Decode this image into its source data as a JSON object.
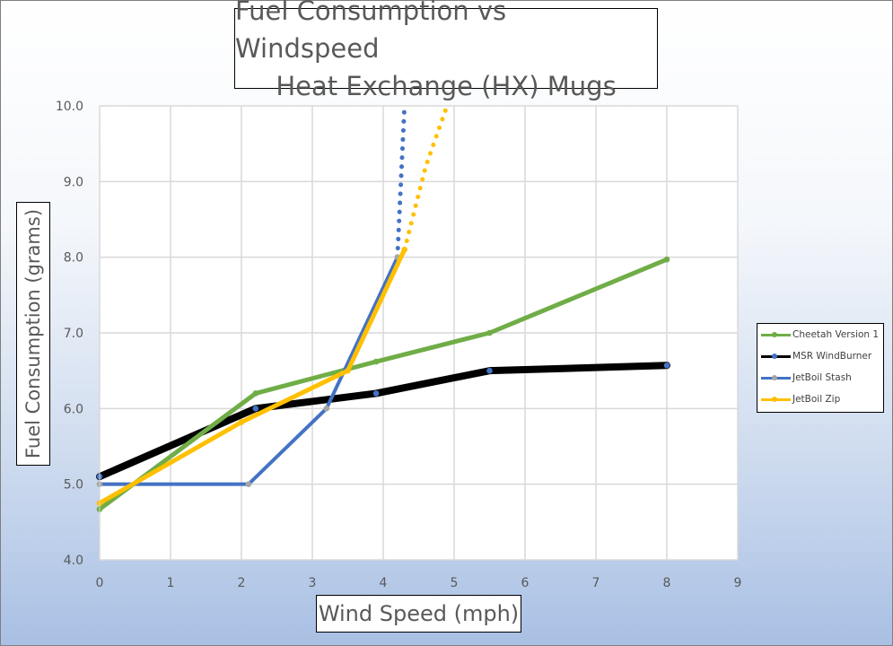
{
  "chart_data": {
    "type": "line",
    "title_line1": "Fuel Consumption vs Windspeed",
    "title_line2": "Heat Exchange (HX) Mugs",
    "xlabel": "Wind Speed (mph)",
    "ylabel": "Fuel Consumption (grams)",
    "xlim": [
      0,
      9
    ],
    "ylim": [
      4.0,
      10.0
    ],
    "x_ticks": [
      "0",
      "1",
      "2",
      "3",
      "4",
      "5",
      "6",
      "7",
      "8",
      "9"
    ],
    "y_ticks": [
      "4.0",
      "5.0",
      "6.0",
      "7.0",
      "8.0",
      "9.0",
      "10.0"
    ],
    "grid": true,
    "legend_position": "right",
    "series": [
      {
        "name": "Cheetah Version 1",
        "color": "#70ad47",
        "points": [
          [
            0,
            4.67
          ],
          [
            2.2,
            6.2
          ],
          [
            3.9,
            6.62
          ],
          [
            5.5,
            7.0
          ],
          [
            8.0,
            7.97
          ]
        ]
      },
      {
        "name": "MSR WindBurner",
        "color": "#000000",
        "points": [
          [
            0,
            5.1
          ],
          [
            2.2,
            6.0
          ],
          [
            3.9,
            6.2
          ],
          [
            5.5,
            6.5
          ],
          [
            8.0,
            6.57
          ]
        ],
        "marker_color": "#4472c4"
      },
      {
        "name": "JetBoil Stash",
        "color": "#4472c4",
        "points": [
          [
            0,
            5.0
          ],
          [
            2.1,
            5.0
          ],
          [
            3.2,
            6.0
          ],
          [
            4.2,
            8.0
          ]
        ],
        "marker_color": "#a5a5a5",
        "extension": [
          [
            4.2,
            8.0
          ],
          [
            4.25,
            9.0
          ],
          [
            4.3,
            10.0
          ]
        ]
      },
      {
        "name": "JetBoil Zip",
        "color": "#ffc000",
        "points": [
          [
            0,
            4.75
          ],
          [
            2.0,
            5.82
          ],
          [
            3.5,
            6.5
          ],
          [
            4.3,
            8.1
          ]
        ],
        "extension": [
          [
            4.3,
            8.1
          ],
          [
            4.6,
            9.2
          ],
          [
            4.9,
            10.0
          ]
        ]
      }
    ]
  }
}
